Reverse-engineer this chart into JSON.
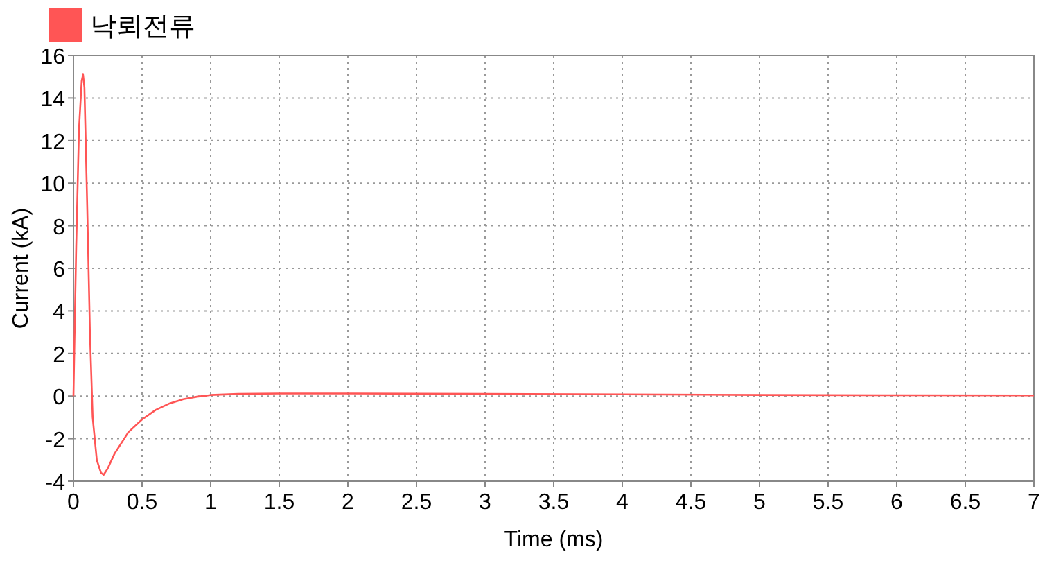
{
  "chart_data": {
    "type": "line",
    "xlabel": "Time (ms)",
    "ylabel": "Current (kA)",
    "x": [
      0,
      0.02,
      0.04,
      0.06,
      0.07,
      0.08,
      0.1,
      0.12,
      0.14,
      0.17,
      0.2,
      0.22,
      0.25,
      0.3,
      0.4,
      0.5,
      0.6,
      0.7,
      0.8,
      0.9,
      1,
      1.2,
      1.5,
      2,
      3,
      4,
      5,
      6,
      7
    ],
    "series": [
      {
        "name": "낙뢰전류",
        "color": "#ff5555",
        "values": [
          0,
          7,
          12.5,
          14.8,
          15.1,
          14.5,
          9,
          3,
          -1,
          -3,
          -3.6,
          -3.7,
          -3.4,
          -2.7,
          -1.7,
          -1.1,
          -0.65,
          -0.35,
          -0.15,
          -0.03,
          0.05,
          0.1,
          0.12,
          0.12,
          0.1,
          0.08,
          0.05,
          0.04,
          0.03
        ]
      }
    ],
    "xlim": [
      0,
      7
    ],
    "xticks": [
      0,
      0.5,
      1,
      1.5,
      2,
      2.5,
      3,
      3.5,
      4,
      4.5,
      5,
      5.5,
      6,
      6.5,
      7
    ],
    "ylim": [
      -4,
      16
    ],
    "yticks": [
      -4,
      -2,
      0,
      2,
      4,
      6,
      8,
      10,
      12,
      14,
      16
    ],
    "grid": true,
    "legend": "top left",
    "marker": "none",
    "line_style": "solid"
  }
}
